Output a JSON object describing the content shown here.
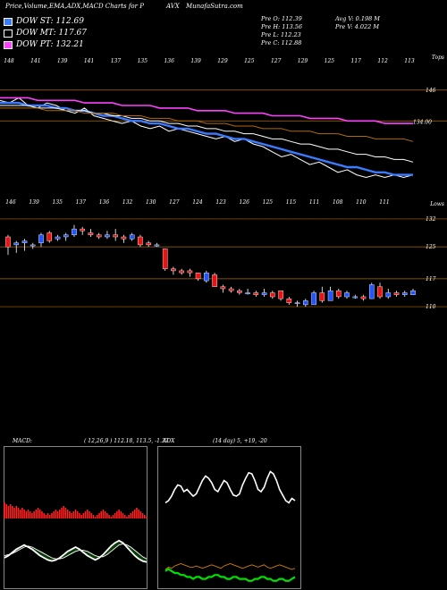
{
  "header": {
    "title_left": "Price,Volume,EMA,ADX,MACD Charts for P",
    "title_mid": "AVX",
    "site": "MunafaSutra.com"
  },
  "legend": [
    {
      "label": "DOW ST: 112.69",
      "color": "#3a7bff"
    },
    {
      "label": "DOW MT: 117.67",
      "color": "#000000"
    },
    {
      "label": "DOW PT: 132.21",
      "color": "#ff40ff"
    }
  ],
  "stats": {
    "prev_o": "Pre   O: 112.39",
    "prev_h": "Pre   H: 113.56",
    "prev_l": "Pre   L: 112.23",
    "prev_c": "Pre   C: 112.88",
    "avg_v": "Avg V: 0.198  M",
    "prev_v": "Pre   V: 4.022  M"
  },
  "chart_data": [
    {
      "type": "line",
      "name": "price-ema",
      "top_ticks": [
        "148",
        "141",
        "139",
        "141",
        "137",
        "135",
        "136",
        "139",
        "129",
        "125",
        "127",
        "129",
        "125",
        "117",
        "112",
        "113"
      ],
      "tag_right_top": "Tops",
      "price_labels": [
        "146",
        "134.00"
      ],
      "series": [
        {
          "name": "price",
          "color": "#ffffff",
          "values": [
            142,
            141,
            143,
            140,
            139,
            141,
            140,
            138,
            137,
            139,
            136,
            135,
            134,
            133,
            134,
            132,
            131,
            132,
            130,
            131,
            130,
            129,
            128,
            127,
            128,
            126,
            127,
            125,
            124,
            122,
            120,
            121,
            119,
            117,
            118,
            116,
            114,
            115,
            113,
            112,
            113,
            112,
            113,
            112,
            113
          ]
        },
        {
          "name": "ema_short",
          "color": "#3a7bff",
          "values": [
            141,
            141,
            141,
            140,
            140,
            140,
            139,
            139,
            138,
            138,
            137,
            136,
            136,
            135,
            134,
            134,
            133,
            133,
            132,
            131,
            131,
            130,
            129,
            129,
            128,
            127,
            127,
            126,
            125,
            124,
            123,
            122,
            121,
            120,
            119,
            118,
            117,
            116,
            116,
            115,
            114,
            114,
            113,
            113,
            113
          ]
        },
        {
          "name": "ema_mid",
          "color": "#ffffff",
          "values": [
            140,
            140,
            140,
            140,
            139,
            139,
            139,
            138,
            138,
            138,
            137,
            137,
            136,
            136,
            135,
            135,
            134,
            134,
            133,
            133,
            132,
            132,
            131,
            131,
            130,
            130,
            129,
            129,
            128,
            127,
            127,
            126,
            125,
            125,
            124,
            123,
            123,
            122,
            121,
            121,
            120,
            120,
            119,
            119,
            118
          ]
        },
        {
          "name": "ema_long",
          "color": "#b06a00",
          "values": [
            139,
            139,
            139,
            139,
            139,
            138,
            138,
            138,
            138,
            137,
            137,
            137,
            137,
            136,
            136,
            136,
            135,
            135,
            135,
            134,
            134,
            134,
            133,
            133,
            133,
            132,
            132,
            132,
            131,
            131,
            131,
            130,
            130,
            130,
            129,
            129,
            129,
            128,
            128,
            128,
            127,
            127,
            127,
            127,
            126
          ]
        },
        {
          "name": "ema_pt",
          "color": "#ff40ff",
          "values": [
            143,
            143,
            143,
            143,
            142,
            142,
            142,
            142,
            142,
            141,
            141,
            141,
            141,
            140,
            140,
            140,
            140,
            139,
            139,
            139,
            139,
            138,
            138,
            138,
            138,
            137,
            137,
            137,
            137,
            136,
            136,
            136,
            136,
            135,
            135,
            135,
            135,
            134,
            134,
            134,
            134,
            133,
            133,
            133,
            133
          ]
        }
      ]
    },
    {
      "type": "candlestick",
      "name": "candles",
      "bottom_ticks": [
        "146",
        "139",
        "135",
        "137",
        "136",
        "132",
        "130",
        "127",
        "124",
        "123",
        "126",
        "125",
        "115",
        "111",
        "108",
        "110",
        "111"
      ],
      "tag_right": "Lows",
      "price_labels": [
        "132",
        "125",
        "117",
        "110"
      ],
      "candles": [
        {
          "o": 127.5,
          "c": 125.0,
          "h": 128.0,
          "l": 123.0
        },
        {
          "o": 125.5,
          "c": 126.0,
          "h": 126.5,
          "l": 123.5
        },
        {
          "o": 126.0,
          "c": 126.5,
          "h": 127.0,
          "l": 124.0
        },
        {
          "o": 125.5,
          "c": 125.5,
          "h": 126.0,
          "l": 124.5
        },
        {
          "o": 126.0,
          "c": 128.0,
          "h": 128.5,
          "l": 125.0
        },
        {
          "o": 128.5,
          "c": 126.5,
          "h": 129.0,
          "l": 126.0
        },
        {
          "o": 127.0,
          "c": 127.5,
          "h": 128.0,
          "l": 126.5
        },
        {
          "o": 127.5,
          "c": 128.0,
          "h": 128.5,
          "l": 126.5
        },
        {
          "o": 128.0,
          "c": 129.5,
          "h": 130.5,
          "l": 127.5
        },
        {
          "o": 129.5,
          "c": 129.0,
          "h": 130.0,
          "l": 128.0
        },
        {
          "o": 128.5,
          "c": 128.0,
          "h": 129.5,
          "l": 127.5
        },
        {
          "o": 128.0,
          "c": 127.5,
          "h": 128.5,
          "l": 127.0
        },
        {
          "o": 127.5,
          "c": 128.0,
          "h": 129.0,
          "l": 127.0
        },
        {
          "o": 128.0,
          "c": 127.5,
          "h": 129.5,
          "l": 126.5
        },
        {
          "o": 127.5,
          "c": 127.0,
          "h": 128.0,
          "l": 126.0
        },
        {
          "o": 127.0,
          "c": 128.0,
          "h": 128.5,
          "l": 126.5
        },
        {
          "o": 127.5,
          "c": 125.5,
          "h": 128.0,
          "l": 125.0
        },
        {
          "o": 126.0,
          "c": 125.5,
          "h": 126.5,
          "l": 125.0
        },
        {
          "o": 125.5,
          "c": 125.5,
          "h": 126.0,
          "l": 125.0
        },
        {
          "o": 124.5,
          "c": 119.5,
          "h": 124.5,
          "l": 119.0
        },
        {
          "o": 119.5,
          "c": 119.0,
          "h": 120.0,
          "l": 118.0
        },
        {
          "o": 119.0,
          "c": 118.5,
          "h": 119.5,
          "l": 118.0
        },
        {
          "o": 119.0,
          "c": 118.5,
          "h": 119.5,
          "l": 117.5
        },
        {
          "o": 118.5,
          "c": 117.0,
          "h": 118.5,
          "l": 116.5
        },
        {
          "o": 116.5,
          "c": 118.5,
          "h": 119.0,
          "l": 116.0
        },
        {
          "o": 118.0,
          "c": 115.0,
          "h": 118.5,
          "l": 115.0
        },
        {
          "o": 115.0,
          "c": 114.5,
          "h": 115.5,
          "l": 113.5
        },
        {
          "o": 114.5,
          "c": 114.0,
          "h": 115.0,
          "l": 113.5
        },
        {
          "o": 114.0,
          "c": 113.5,
          "h": 114.5,
          "l": 113.0
        },
        {
          "o": 113.5,
          "c": 113.5,
          "h": 114.5,
          "l": 113.0
        },
        {
          "o": 113.5,
          "c": 113.0,
          "h": 114.0,
          "l": 112.5
        },
        {
          "o": 113.0,
          "c": 113.5,
          "h": 114.5,
          "l": 112.5
        },
        {
          "o": 113.5,
          "c": 112.5,
          "h": 114.0,
          "l": 112.0
        },
        {
          "o": 114.0,
          "c": 112.0,
          "h": 114.0,
          "l": 111.5
        },
        {
          "o": 112.0,
          "c": 111.0,
          "h": 112.5,
          "l": 110.5
        },
        {
          "o": 111.0,
          "c": 111.0,
          "h": 111.5,
          "l": 110.0
        },
        {
          "o": 110.5,
          "c": 111.5,
          "h": 112.0,
          "l": 110.0
        },
        {
          "o": 110.5,
          "c": 113.5,
          "h": 114.0,
          "l": 110.5
        },
        {
          "o": 113.5,
          "c": 111.5,
          "h": 115.0,
          "l": 111.0
        },
        {
          "o": 111.5,
          "c": 114.0,
          "h": 115.0,
          "l": 111.5
        },
        {
          "o": 114.0,
          "c": 112.5,
          "h": 114.5,
          "l": 112.0
        },
        {
          "o": 112.5,
          "c": 113.5,
          "h": 114.0,
          "l": 112.0
        },
        {
          "o": 112.5,
          "c": 112.5,
          "h": 113.0,
          "l": 112.0
        },
        {
          "o": 112.5,
          "c": 112.0,
          "h": 113.0,
          "l": 111.5
        },
        {
          "o": 112.0,
          "c": 115.5,
          "h": 116.0,
          "l": 112.0
        },
        {
          "o": 115.0,
          "c": 112.5,
          "h": 116.0,
          "l": 112.0
        },
        {
          "o": 112.5,
          "c": 113.5,
          "h": 114.5,
          "l": 112.0
        },
        {
          "o": 113.5,
          "c": 113.0,
          "h": 114.0,
          "l": 112.5
        },
        {
          "o": 113.0,
          "c": 113.5,
          "h": 114.0,
          "l": 112.5
        },
        {
          "o": 113.0,
          "c": 114.0,
          "h": 114.5,
          "l": 113.0
        }
      ]
    },
    {
      "type": "area",
      "name": "macd",
      "label": "MACD:",
      "values_text": "( 12,26,9 ) 112.18,  113.5,  -1.37",
      "histogram": [
        9,
        8,
        7,
        8,
        7,
        6,
        7,
        6,
        5,
        6,
        5,
        4,
        5,
        4,
        3,
        4,
        5,
        6,
        5,
        4,
        3,
        2,
        3,
        2,
        3,
        4,
        5,
        4,
        5,
        6,
        7,
        6,
        5,
        4,
        3,
        4,
        5,
        4,
        3,
        2,
        3,
        4,
        5,
        4,
        3,
        2,
        1,
        2,
        3,
        4,
        5,
        4,
        3,
        2,
        1,
        2,
        3,
        4,
        5,
        4,
        3,
        2,
        1,
        2,
        3,
        4,
        5,
        6,
        5,
        4,
        3,
        2,
        1
      ],
      "macd_line": [
        -2.0,
        -2.2,
        -2.5,
        -2.8,
        -3.0,
        -3.2,
        -3.0,
        -2.8,
        -2.5,
        -2.2,
        -2.0,
        -1.8,
        -1.7,
        -1.8,
        -2.0,
        -2.3,
        -2.6,
        -2.8,
        -3.0,
        -2.8,
        -2.5,
        -2.2,
        -2.0,
        -1.8,
        -2.0,
        -2.3,
        -2.7,
        -3.1,
        -3.4,
        -3.6,
        -3.4,
        -3.0,
        -2.6,
        -2.2,
        -1.9,
        -1.7,
        -1.6
      ],
      "signal_line": [
        -2.2,
        -2.3,
        -2.4,
        -2.6,
        -2.8,
        -3.0,
        -3.1,
        -3.0,
        -2.8,
        -2.6,
        -2.4,
        -2.2,
        -2.0,
        -1.9,
        -1.9,
        -2.0,
        -2.2,
        -2.4,
        -2.6,
        -2.7,
        -2.7,
        -2.6,
        -2.4,
        -2.2,
        -2.1,
        -2.1,
        -2.3,
        -2.6,
        -2.9,
        -3.2,
        -3.3,
        -3.2,
        -3.0,
        -2.7,
        -2.4,
        -2.1,
        -1.9
      ]
    },
    {
      "type": "line",
      "name": "adx",
      "label": "ADX",
      "values_text": "(14  day) 5,  +19,  -20",
      "series": [
        {
          "name": "di_spread",
          "color": "#ffffff",
          "values": [
            18,
            20,
            24,
            30,
            34,
            33,
            28,
            30,
            27,
            24,
            26,
            32,
            38,
            42,
            40,
            36,
            30,
            28,
            33,
            38,
            36,
            30,
            25,
            24,
            26,
            34,
            40,
            45,
            44,
            38,
            30,
            28,
            32,
            40,
            46,
            44,
            38,
            30,
            25,
            20,
            18,
            22,
            20
          ]
        },
        {
          "name": "di_minus",
          "color": "#d08000",
          "values": [
            10,
            12,
            11,
            13,
            14,
            15,
            14,
            13,
            12,
            12,
            13,
            12,
            11,
            12,
            13,
            14,
            13,
            12,
            11,
            13,
            14,
            15,
            14,
            13,
            12,
            11,
            12,
            13,
            14,
            13,
            12,
            13,
            14,
            12,
            11,
            12,
            13,
            14,
            13,
            12,
            11,
            10,
            11
          ]
        },
        {
          "name": "adx_line",
          "color": "#00e000",
          "values": [
            6,
            7,
            6,
            5,
            5,
            4,
            4,
            3,
            3,
            2,
            3,
            3,
            2,
            2,
            3,
            3,
            4,
            4,
            3,
            3,
            2,
            2,
            3,
            3,
            2,
            2,
            2,
            1,
            1,
            2,
            2,
            3,
            3,
            2,
            2,
            1,
            1,
            2,
            2,
            1,
            1,
            2,
            3
          ]
        }
      ]
    }
  ]
}
